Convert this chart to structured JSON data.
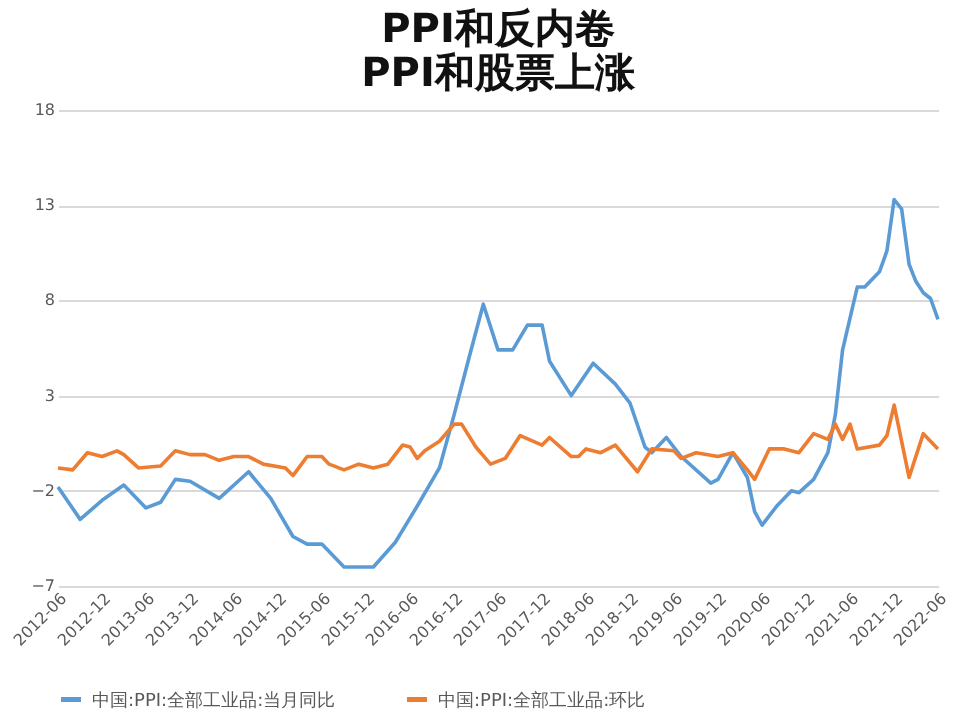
{
  "chart_data": {
    "type": "line",
    "title": [
      "PPI和反内卷",
      "PPI和股票上涨"
    ],
    "xlim": [
      "2012-06",
      "2022-06"
    ],
    "xticks": [
      "2012-06",
      "2012-12",
      "2013-06",
      "2013-12",
      "2014-06",
      "2014-12",
      "2015-06",
      "2015-12",
      "2016-06",
      "2016-12",
      "2017-06",
      "2017-12",
      "2018-06",
      "2018-12",
      "2019-06",
      "2019-12",
      "2020-06",
      "2020-12",
      "2021-06",
      "2021-12",
      "2022-06"
    ],
    "ylim": [
      -7,
      18
    ],
    "yticks": [
      -7,
      -2,
      3,
      8,
      13,
      18
    ],
    "grid": "y",
    "legend": "bottom",
    "line_style": "solid",
    "marker": "none",
    "series": [
      {
        "name": "中国:PPI:全部工业品:当月同比",
        "color": "#5b9bd5",
        "x": [
          "2012-06",
          "2012-09",
          "2012-12",
          "2013-03",
          "2013-06",
          "2013-08",
          "2013-10",
          "2013-12",
          "2014-04",
          "2014-08",
          "2014-11",
          "2015-02",
          "2015-04",
          "2015-06",
          "2015-09",
          "2016-01",
          "2016-04",
          "2016-07",
          "2016-10",
          "2016-12",
          "2017-02",
          "2017-04",
          "2017-06",
          "2017-08",
          "2017-10",
          "2017-12",
          "2018-01",
          "2018-04",
          "2018-07",
          "2018-10",
          "2018-12",
          "2019-02",
          "2019-03",
          "2019-05",
          "2019-07",
          "2019-11",
          "2019-12",
          "2020-02",
          "2020-04",
          "2020-05",
          "2020-06",
          "2020-08",
          "2020-10",
          "2020-11",
          "2021-01",
          "2021-03",
          "2021-04",
          "2021-05",
          "2021-07",
          "2021-08",
          "2021-10",
          "2021-11",
          "2021-12",
          "2022-01",
          "2022-02",
          "2022-03",
          "2022-04",
          "2022-05",
          "2022-06"
        ],
        "values": [
          -1.8,
          -3.5,
          -2.5,
          -1.7,
          -2.9,
          -2.6,
          -1.4,
          -1.5,
          -2.4,
          -1.0,
          -2.4,
          -4.4,
          -4.8,
          -4.8,
          -6.0,
          -6.0,
          -4.7,
          -2.8,
          -0.8,
          2.0,
          5.0,
          7.8,
          5.4,
          5.4,
          6.7,
          6.7,
          4.8,
          3.0,
          4.7,
          3.6,
          2.6,
          0.3,
          0.0,
          0.8,
          -0.2,
          -1.6,
          -1.4,
          0.0,
          -1.3,
          -3.1,
          -3.8,
          -2.8,
          -2.0,
          -2.1,
          -1.4,
          0.0,
          2.0,
          5.4,
          8.7,
          8.7,
          9.5,
          10.6,
          13.3,
          12.8,
          9.9,
          9.0,
          8.4,
          8.1,
          7.0
        ]
      },
      {
        "name": "中国:PPI:全部工业品:环比",
        "color": "#ed7d31",
        "x": [
          "2012-06",
          "2012-08",
          "2012-10",
          "2012-12",
          "2013-02",
          "2013-03",
          "2013-05",
          "2013-08",
          "2013-10",
          "2013-12",
          "2014-02",
          "2014-04",
          "2014-06",
          "2014-08",
          "2014-10",
          "2015-01",
          "2015-02",
          "2015-04",
          "2015-06",
          "2015-07",
          "2015-09",
          "2015-11",
          "2016-01",
          "2016-03",
          "2016-05",
          "2016-06",
          "2016-07",
          "2016-08",
          "2016-10",
          "2016-12",
          "2017-01",
          "2017-03",
          "2017-05",
          "2017-07",
          "2017-09",
          "2017-12",
          "2018-01",
          "2018-04",
          "2018-05",
          "2018-06",
          "2018-08",
          "2018-10",
          "2019-01",
          "2019-03",
          "2019-06",
          "2019-07",
          "2019-09",
          "2019-12",
          "2020-02",
          "2020-04",
          "2020-05",
          "2020-07",
          "2020-09",
          "2020-11",
          "2021-01",
          "2021-03",
          "2021-04",
          "2021-05",
          "2021-06",
          "2021-07",
          "2021-10",
          "2021-11",
          "2021-12",
          "2022-02",
          "2022-03",
          "2022-04",
          "2022-06"
        ],
        "values": [
          -0.8,
          -0.9,
          0.0,
          -0.2,
          0.1,
          -0.1,
          -0.8,
          -0.7,
          0.1,
          -0.1,
          -0.1,
          -0.4,
          -0.2,
          -0.2,
          -0.6,
          -0.8,
          -1.2,
          -0.2,
          -0.2,
          -0.6,
          -0.9,
          -0.6,
          -0.8,
          -0.6,
          0.4,
          0.3,
          -0.3,
          0.1,
          0.6,
          1.5,
          1.5,
          0.3,
          -0.6,
          -0.3,
          0.9,
          0.4,
          0.8,
          -0.2,
          -0.2,
          0.2,
          0.0,
          0.4,
          -1.0,
          0.2,
          0.1,
          -0.3,
          0.0,
          -0.2,
          0.0,
          -0.9,
          -1.4,
          0.2,
          0.2,
          0.0,
          1.0,
          0.7,
          1.5,
          0.7,
          1.5,
          0.2,
          0.4,
          0.9,
          2.5,
          -1.3,
          -0.2,
          1.0,
          0.2
        ]
      }
    ]
  }
}
